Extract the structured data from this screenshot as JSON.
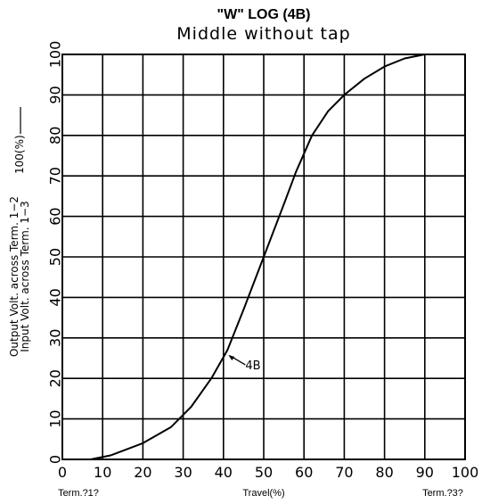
{
  "chart_data": {
    "type": "line",
    "title": "\"W\" LOG (4B)",
    "subtitle": "Middle without tap",
    "ylabel_line1": "Output Volt. across  Term. 1−2",
    "ylabel_line2": "Input  Volt. across  Term. 1−3",
    "ylabel_suffix": "100(%)",
    "xlabel": "Travel(%)",
    "x_left_label": "Term.?1?",
    "x_right_label": "Term.?3?",
    "xlim": [
      0,
      100
    ],
    "ylim": [
      0,
      100
    ],
    "x_ticks": [
      "0",
      "10",
      "20",
      "30",
      "40",
      "50",
      "60",
      "70",
      "80",
      "90",
      "100"
    ],
    "y_ticks": [
      "0",
      "10",
      "20",
      "30",
      "40",
      "50",
      "60",
      "70",
      "80",
      "90",
      "100"
    ],
    "grid": true,
    "series": [
      {
        "name": "4B",
        "x": [
          7,
          12,
          20,
          27,
          32,
          37,
          41,
          45,
          50,
          55,
          58,
          62,
          66,
          70,
          75,
          80,
          85,
          90,
          93
        ],
        "y": [
          0,
          1,
          4,
          8,
          13,
          20,
          27,
          37,
          50,
          63,
          71,
          80,
          86,
          90,
          94,
          97,
          99,
          100,
          100
        ]
      }
    ],
    "annotation": {
      "text": "4B",
      "point": [
        41,
        26
      ]
    },
    "colors": {
      "line": "#000000",
      "grid": "#000000",
      "background": "#ffffff"
    }
  }
}
